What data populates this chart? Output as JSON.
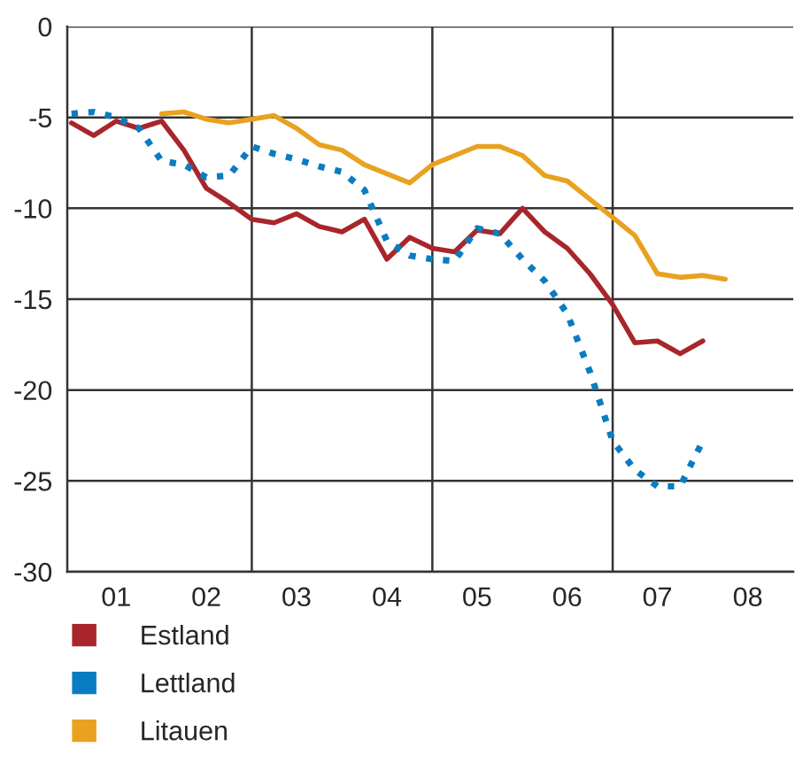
{
  "chart_data": {
    "type": "line",
    "xlim": [
      "2000-12-15",
      "2009-01-01"
    ],
    "xticks": [
      {
        "value": "2001-07-01",
        "label": "01"
      },
      {
        "value": "2002-07-01",
        "label": "02"
      },
      {
        "value": "2003-07-01",
        "label": "03"
      },
      {
        "value": "2004-07-01",
        "label": "04"
      },
      {
        "value": "2005-07-01",
        "label": "05"
      },
      {
        "value": "2006-07-01",
        "label": "06"
      },
      {
        "value": "2007-07-01",
        "label": "07"
      },
      {
        "value": "2008-07-01",
        "label": "08"
      }
    ],
    "ylim": [
      -30,
      0
    ],
    "yticks": [
      -30,
      -25,
      -20,
      -15,
      -10,
      -5,
      0
    ],
    "grid": "y",
    "legend": "bottom",
    "ref_lines": [
      {
        "axis": "x",
        "value": "2003-01-01",
        "color": "#333333"
      },
      {
        "axis": "x",
        "value": "2005-01-01",
        "color": "#333333"
      },
      {
        "axis": "x",
        "value": "2007-01-01",
        "color": "#333333"
      }
    ],
    "series": [
      {
        "name": "Estland",
        "color": "#a8262b",
        "line_style": "solid",
        "x": [
          "2001-01",
          "2001-04",
          "2001-07",
          "2001-10",
          "2002-01",
          "2002-04",
          "2002-07",
          "2002-10",
          "2003-01",
          "2003-04",
          "2003-07",
          "2003-10",
          "2004-01",
          "2004-04",
          "2004-07",
          "2004-10",
          "2005-01",
          "2005-04",
          "2005-07",
          "2005-10",
          "2006-01",
          "2006-04",
          "2006-07",
          "2006-10",
          "2007-01",
          "2007-04",
          "2007-07",
          "2007-10",
          "2008-01"
        ],
        "values": [
          -5.3,
          -6.0,
          -5.2,
          -5.6,
          -5.2,
          -6.8,
          -8.9,
          -9.7,
          -10.6,
          -10.8,
          -10.3,
          -11.0,
          -11.3,
          -10.6,
          -12.8,
          -11.6,
          -12.2,
          -12.4,
          -11.2,
          -11.4,
          -10.0,
          -11.3,
          -12.2,
          -13.6,
          -15.3,
          -17.4,
          -17.3,
          -18.0,
          -17.3
        ]
      },
      {
        "name": "Lettland",
        "color": "#0a7cc1",
        "line_style": "dotted",
        "x": [
          "2001-01",
          "2001-04",
          "2001-07",
          "2001-10",
          "2002-01",
          "2002-04",
          "2002-07",
          "2002-10",
          "2003-01",
          "2003-04",
          "2003-07",
          "2003-10",
          "2004-01",
          "2004-04",
          "2004-07",
          "2004-10",
          "2005-01",
          "2005-04",
          "2005-07",
          "2005-10",
          "2006-01",
          "2006-04",
          "2006-07",
          "2006-10",
          "2007-01",
          "2007-04",
          "2007-07",
          "2007-10",
          "2008-01"
        ],
        "values": [
          -4.8,
          -4.7,
          -5.0,
          -5.6,
          -7.4,
          -7.6,
          -8.3,
          -8.2,
          -6.6,
          -7.0,
          -7.3,
          -7.7,
          -8.0,
          -9.0,
          -11.8,
          -12.6,
          -12.8,
          -12.9,
          -11.1,
          -11.4,
          -12.8,
          -14.0,
          -15.8,
          -19.0,
          -22.8,
          -24.4,
          -25.3,
          -25.3,
          -22.8
        ]
      },
      {
        "name": "Litauen",
        "color": "#e8a21f",
        "line_style": "solid",
        "x": [
          "2002-01",
          "2002-04",
          "2002-07",
          "2002-10",
          "2003-01",
          "2003-04",
          "2003-07",
          "2003-10",
          "2004-01",
          "2004-04",
          "2004-07",
          "2004-10",
          "2005-01",
          "2005-04",
          "2005-07",
          "2005-10",
          "2006-01",
          "2006-04",
          "2006-07",
          "2006-10",
          "2007-01",
          "2007-04",
          "2007-07",
          "2007-10",
          "2008-01",
          "2008-04"
        ],
        "values": [
          -4.8,
          -4.7,
          -5.1,
          -5.3,
          -5.1,
          -4.9,
          -5.6,
          -6.5,
          -6.8,
          -7.6,
          -8.1,
          -8.6,
          -7.6,
          -7.1,
          -6.6,
          -6.6,
          -7.1,
          -8.2,
          -8.5,
          -9.5,
          -10.5,
          -11.5,
          -13.6,
          -13.8,
          -13.7,
          -13.9
        ]
      }
    ]
  }
}
